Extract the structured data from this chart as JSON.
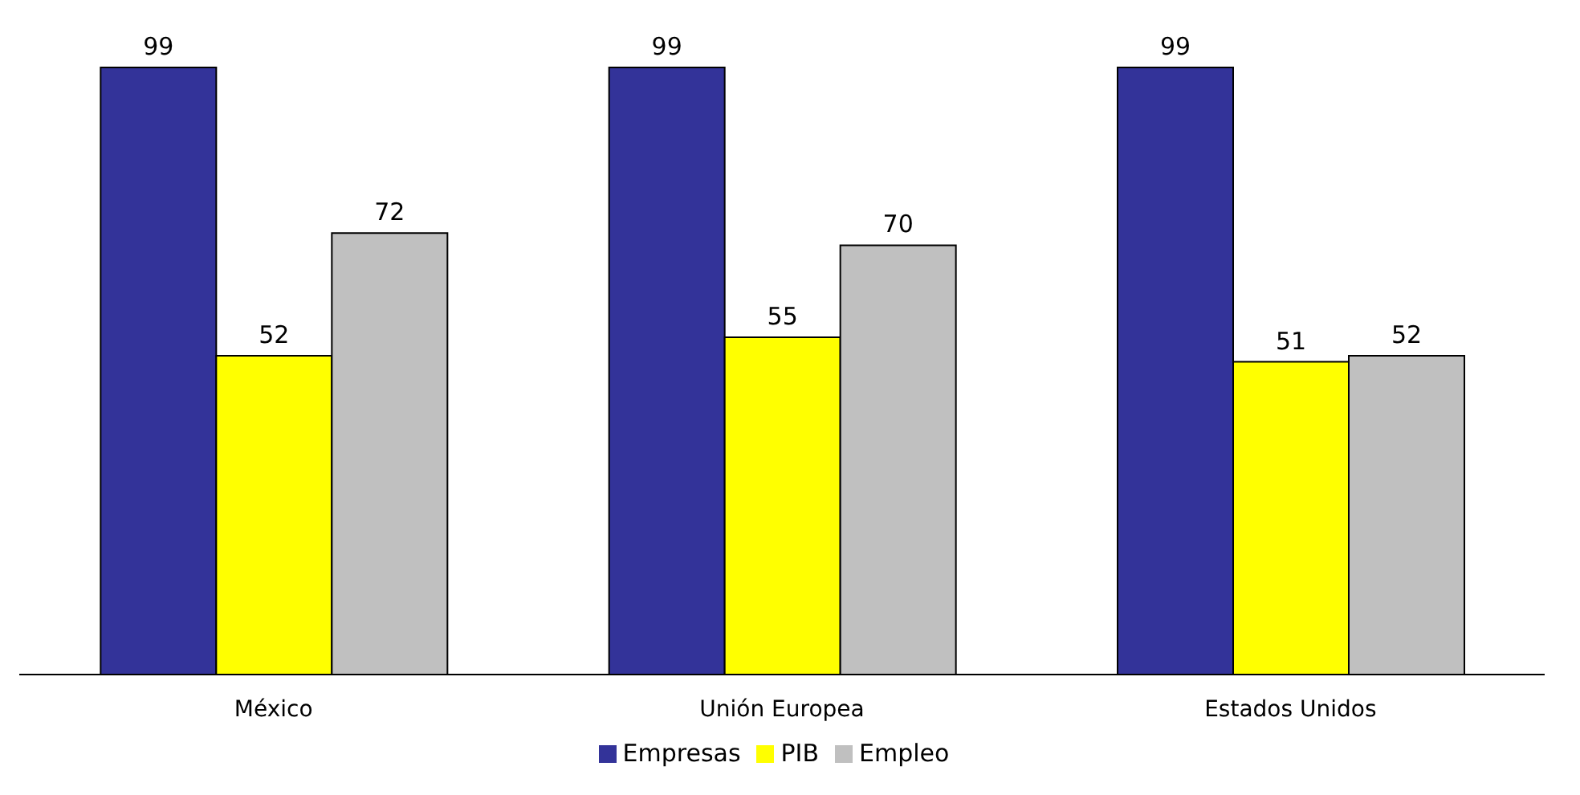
{
  "chart_data": {
    "type": "bar",
    "categories": [
      "México",
      "Unión Europea",
      "Estados Unidos"
    ],
    "series": [
      {
        "name": "Empresas",
        "color": "#333399",
        "values": [
          99,
          99,
          99
        ]
      },
      {
        "name": "PIB",
        "color": "#ffff00",
        "values": [
          52,
          55,
          51
        ]
      },
      {
        "name": "Empleo",
        "color": "#c0c0c0",
        "values": [
          72,
          70,
          52
        ]
      }
    ],
    "data_labels": true,
    "legend": "bottom",
    "grid": false
  }
}
